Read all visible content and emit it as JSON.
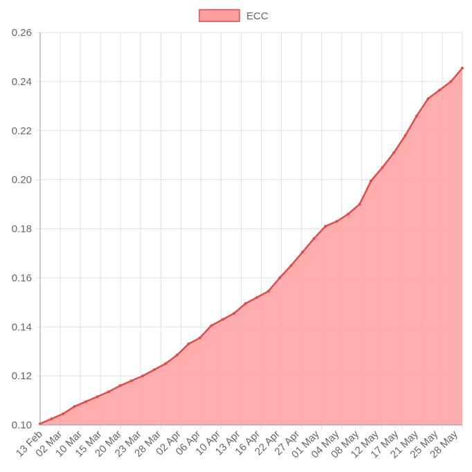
{
  "chart_data": {
    "type": "area",
    "colors": {
      "fill": "#ff9f9f",
      "line": "#e04b4b",
      "grid": "#e0e0e0",
      "axis": "#999999",
      "text": "#666666"
    },
    "legend": {
      "label": "ECC",
      "position": "top-center"
    },
    "ylim": [
      0.1,
      0.26
    ],
    "y_ticks": [
      "0.10",
      "0.12",
      "0.14",
      "0.16",
      "0.18",
      "0.20",
      "0.22",
      "0.24",
      "0.26"
    ],
    "x_labels": [
      "13 Feb",
      "02 Mar",
      "10 Mar",
      "15 Mar",
      "20 Mar",
      "23 Mar",
      "28 Mar",
      "02 Apr",
      "06 Apr",
      "10 Apr",
      "13 Apr",
      "16 Apr",
      "22 Apr",
      "27 Apr",
      "01 May",
      "04 May",
      "08 May",
      "12 May",
      "17 May",
      "21 May",
      "25 May",
      "28 May"
    ],
    "grid": true,
    "series": [
      {
        "name": "ECC",
        "values": [
          0.1005,
          0.1025,
          0.1045,
          0.1075,
          0.1095,
          0.1115,
          0.1135,
          0.116,
          0.118,
          0.12,
          0.1225,
          0.125,
          0.1285,
          0.133,
          0.1355,
          0.1405,
          0.143,
          0.1455,
          0.1495,
          0.152,
          0.1545,
          0.16,
          0.165,
          0.1705,
          0.176,
          0.181,
          0.183,
          0.186,
          0.19,
          0.1995,
          0.205,
          0.211,
          0.218,
          0.226,
          0.233,
          0.2365,
          0.24,
          0.2455
        ]
      }
    ]
  }
}
